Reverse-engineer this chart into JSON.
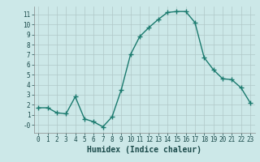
{
  "x": [
    0,
    1,
    2,
    3,
    4,
    5,
    6,
    7,
    8,
    9,
    10,
    11,
    12,
    13,
    14,
    15,
    16,
    17,
    18,
    19,
    20,
    21,
    22,
    23
  ],
  "y": [
    1.7,
    1.7,
    1.2,
    1.1,
    2.8,
    0.6,
    0.3,
    -0.2,
    0.8,
    3.5,
    7.0,
    8.8,
    9.7,
    10.5,
    11.2,
    11.3,
    11.3,
    10.2,
    6.7,
    5.5,
    4.6,
    4.5,
    3.7,
    2.2
  ],
  "line_color": "#1a7a6e",
  "marker": "+",
  "marker_size": 4,
  "bg_color": "#cce8e8",
  "grid_color": "#b0c8c8",
  "xlabel": "Humidex (Indice chaleur)",
  "xlabel_fontsize": 7,
  "ylim": [
    -0.8,
    11.8
  ],
  "xlim": [
    -0.5,
    23.5
  ],
  "yticks": [
    0,
    1,
    2,
    3,
    4,
    5,
    6,
    7,
    8,
    9,
    10,
    11
  ],
  "ytick_labels": [
    "-0",
    "1",
    "2",
    "3",
    "4",
    "5",
    "6",
    "7",
    "8",
    "9",
    "10",
    "11"
  ],
  "xticks": [
    0,
    1,
    2,
    3,
    4,
    5,
    6,
    7,
    8,
    9,
    10,
    11,
    12,
    13,
    14,
    15,
    16,
    17,
    18,
    19,
    20,
    21,
    22,
    23
  ],
  "tick_fontsize": 5.5,
  "line_width": 1.0
}
